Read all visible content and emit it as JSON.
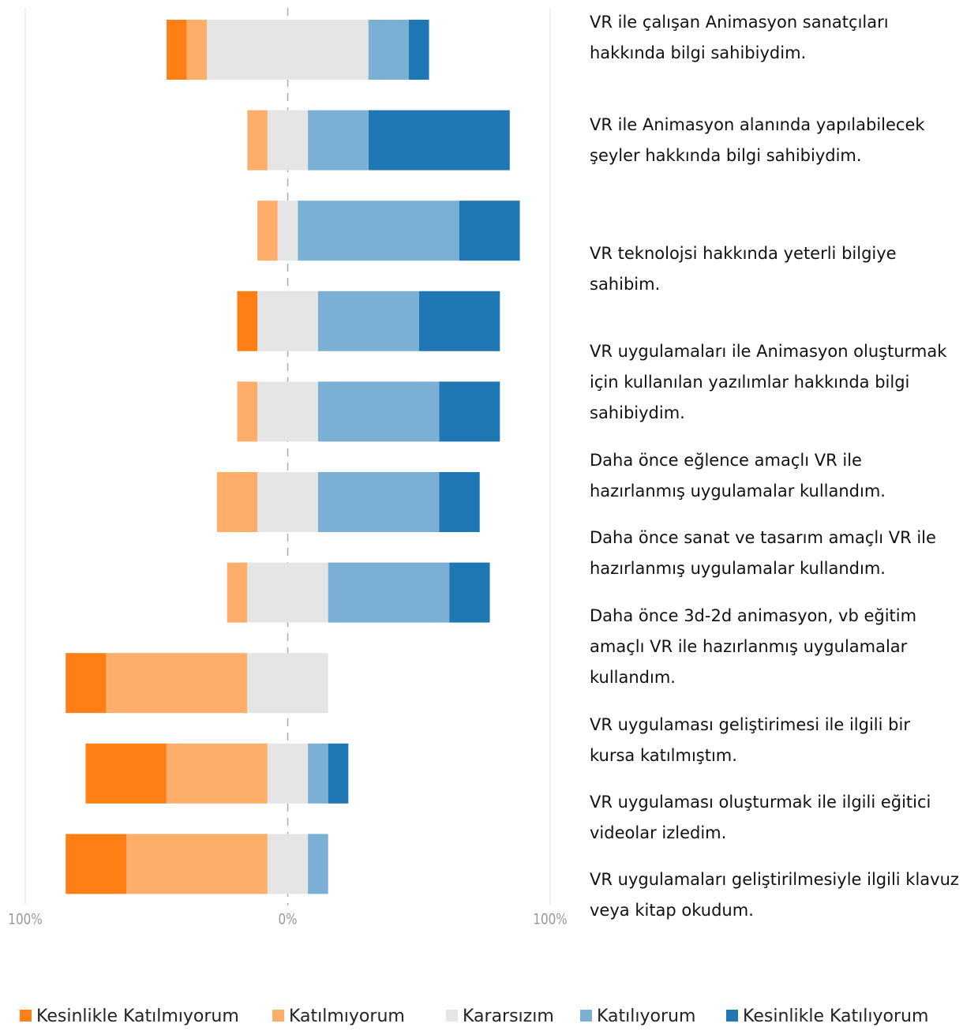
{
  "chart_data": {
    "type": "diverging-bar",
    "categories": [
      "VR ile çalışan Animasyon sanatçıları hakkında bilgi sahibiydim.",
      "VR ile Animasyon alanında yapılabilecek şeyler hakkında bilgi sahibiydim.",
      "VR teknolojsi hakkında yeterli bilgiye sahibim.",
      "VR uygulamaları ile Animasyon oluşturmak için kullanılan yazılımlar hakkında bilgi sahibiydim.",
      "Daha önce eğlence amaçlı VR ile hazırlanmış uygulamalar kullandım.",
      "Daha önce sanat ve tasarım amaçlı VR ile hazırlanmış uygulamalar kullandım.",
      "Daha önce 3d-2d animasyon, vb eğitim amaçlı VR ile hazırlanmış uygulamalar kullandım.",
      "VR uygulaması geliştirimesi ile ilgili bir kursa katılmıştım.",
      "VR uygulaması oluşturmak ile ilgili eğitici videolar izledim.",
      "VR uygulamaları geliştirilmesiyle ilgili klavuz veya kitap okudum."
    ],
    "series": [
      {
        "name": "Kesinlikle Katılmıyorum",
        "color": "#fd7f16",
        "values": [
          7.7,
          0,
          0,
          7.7,
          0,
          0,
          0,
          15.4,
          30.8,
          23.1
        ]
      },
      {
        "name": "Katılmıyorum",
        "color": "#fdae6b",
        "values": [
          7.7,
          7.7,
          7.7,
          0,
          7.7,
          15.4,
          7.7,
          53.8,
          38.5,
          53.8
        ]
      },
      {
        "name": "Kararsızım",
        "color": "#e5e5e5",
        "values": [
          61.5,
          15.4,
          7.7,
          23.1,
          23.1,
          23.1,
          30.8,
          30.8,
          15.4,
          15.4
        ]
      },
      {
        "name": "Katılıyorum",
        "color": "#7bafd4",
        "values": [
          15.4,
          23.1,
          61.5,
          38.5,
          46.2,
          46.2,
          46.2,
          0,
          7.7,
          7.7
        ]
      },
      {
        "name": "Kesinlikle Katılıyorum",
        "color": "#1f77b4",
        "values": [
          7.7,
          53.8,
          23.1,
          30.8,
          23.1,
          15.4,
          15.4,
          0,
          7.7,
          0
        ]
      }
    ],
    "xlim": [
      -100,
      100
    ],
    "xticks": [
      {
        "value": -100,
        "label": "100%"
      },
      {
        "value": 0,
        "label": "0%"
      },
      {
        "value": 100,
        "label": "100%"
      }
    ],
    "grid": true
  }
}
